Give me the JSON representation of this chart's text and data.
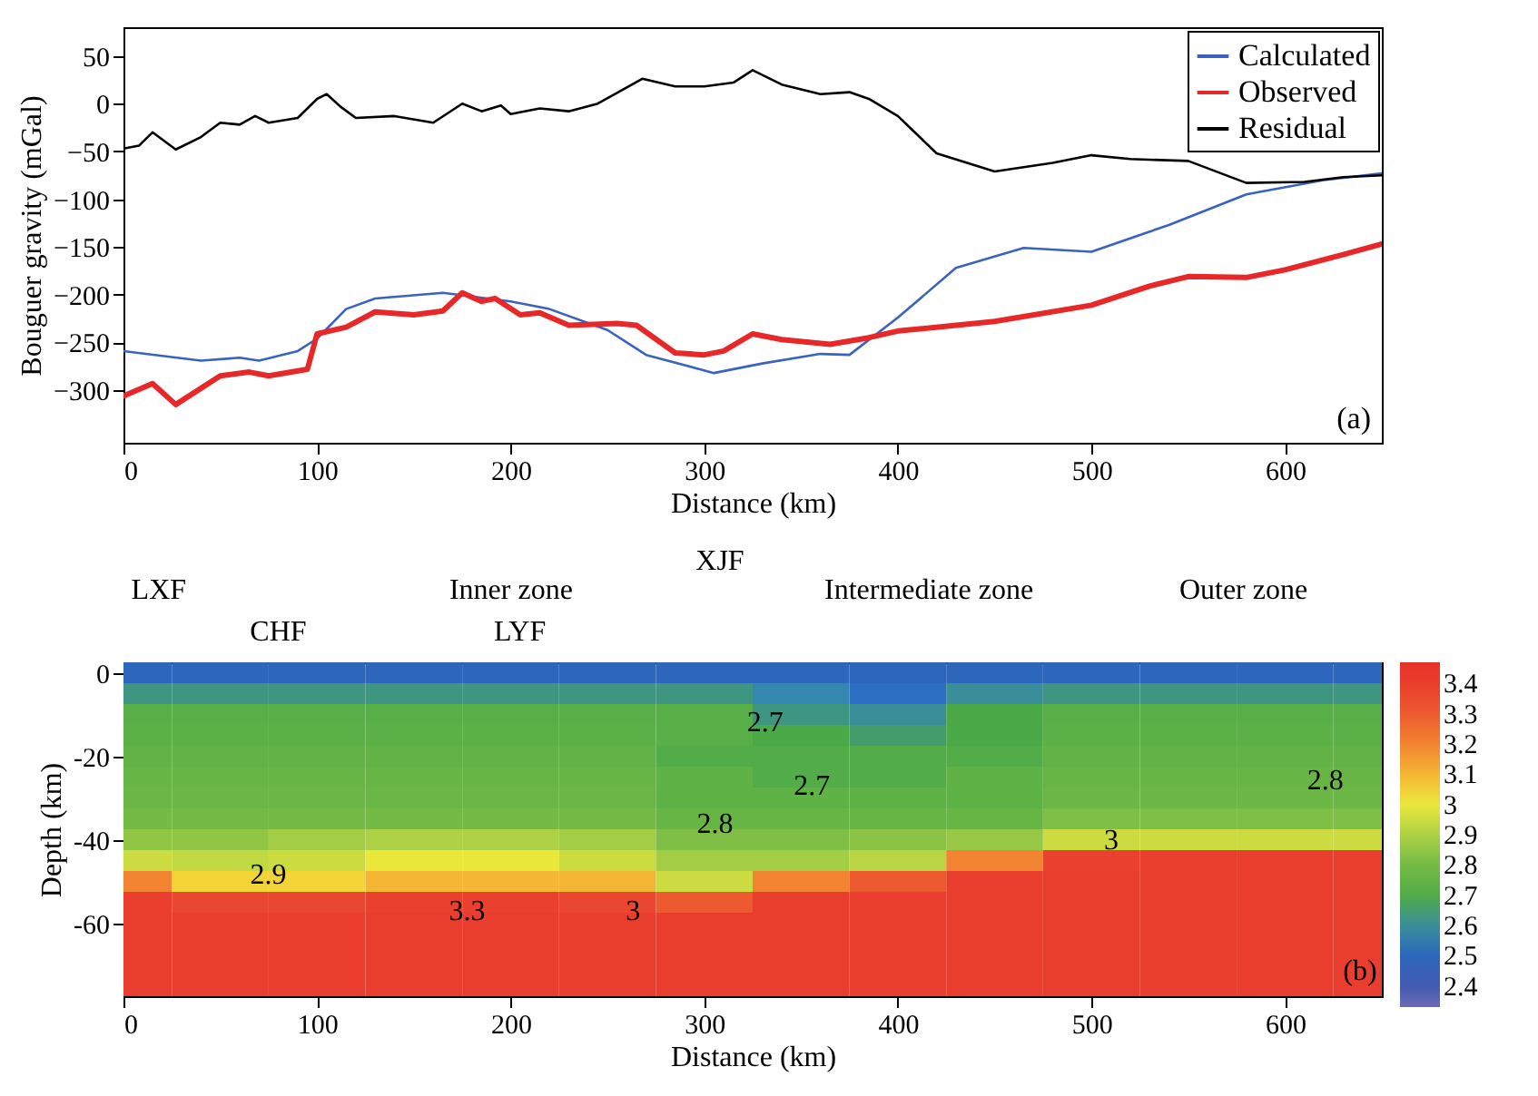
{
  "chart_data": [
    {
      "type": "line",
      "xlabel": "Distance (km)",
      "ylabel": "Bouguer gravity (mGal)",
      "xlim": [
        0,
        650
      ],
      "xticks": [
        0,
        100,
        200,
        300,
        400,
        500,
        600
      ],
      "ylim": [
        -355,
        80
      ],
      "yticks": [
        50,
        0,
        -50,
        -100,
        -150,
        -200,
        -250,
        -300
      ],
      "grid": false,
      "legend": "top right",
      "annotations": [
        "(a)"
      ],
      "series": [
        {
          "name": "Calculated",
          "color": "#3a62c0",
          "x": [
            0,
            40,
            60,
            70,
            90,
            100,
            115,
            130,
            165,
            200,
            220,
            250,
            270,
            305,
            330,
            360,
            375,
            400,
            430,
            465,
            500,
            540,
            580,
            620,
            650
          ],
          "values": [
            -259,
            -269,
            -266,
            -269,
            -259,
            -246,
            -215,
            -204,
            -198,
            -207,
            -215,
            -237,
            -263,
            -282,
            -272,
            -262,
            -263,
            -224,
            -172,
            -151,
            -155,
            -127,
            -95,
            -80,
            -73
          ]
        },
        {
          "name": "Observed",
          "color": "#e82828",
          "x": [
            0,
            15,
            27,
            50,
            65,
            75,
            95,
            100,
            115,
            130,
            150,
            165,
            175,
            185,
            192,
            205,
            215,
            230,
            255,
            265,
            285,
            300,
            310,
            325,
            340,
            365,
            385,
            400,
            450,
            500,
            530,
            550,
            580,
            600,
            630,
            650
          ],
          "values": [
            -306,
            -293,
            -315,
            -285,
            -281,
            -285,
            -278,
            -241,
            -234,
            -218,
            -221,
            -217,
            -198,
            -207,
            -204,
            -221,
            -219,
            -232,
            -230,
            -232,
            -261,
            -263,
            -259,
            -241,
            -247,
            -252,
            -245,
            -238,
            -228,
            -211,
            -191,
            -181,
            -182,
            -174,
            -158,
            -147
          ]
        },
        {
          "name": "Residual",
          "color": "#000000",
          "x": [
            0,
            8,
            15,
            27,
            40,
            50,
            60,
            68,
            75,
            90,
            100,
            105,
            112,
            120,
            140,
            160,
            175,
            185,
            195,
            200,
            215,
            230,
            245,
            268,
            285,
            300,
            315,
            325,
            340,
            360,
            375,
            385,
            400,
            420,
            450,
            480,
            500,
            520,
            550,
            580,
            610,
            630,
            650
          ],
          "values": [
            -47,
            -44,
            -30,
            -48,
            -35,
            -20,
            -22,
            -13,
            -20,
            -15,
            5,
            10,
            -3,
            -15,
            -13,
            -20,
            0,
            -8,
            -2,
            -11,
            -5,
            -8,
            0,
            26,
            18,
            18,
            22,
            35,
            20,
            10,
            12,
            5,
            -13,
            -52,
            -71,
            -62,
            -54,
            -58,
            -60,
            -83,
            -82,
            -77,
            -75
          ]
        }
      ]
    },
    {
      "type": "heatmap",
      "xlabel": "Distance (km)",
      "ylabel": "Depth (km)",
      "clim": [
        2.33,
        3.47
      ],
      "cticks": [
        2.4,
        2.5,
        2.6,
        2.7,
        2.8,
        2.9,
        3,
        3.1,
        3.2,
        3.3,
        3.4
      ],
      "categories": [
        "0",
        null,
        "100",
        null,
        "200",
        null,
        "300",
        null,
        "400",
        null,
        "500",
        null,
        "600",
        null
      ],
      "y_categories": [
        "0",
        null,
        null,
        null,
        "-20",
        null,
        null,
        null,
        "-40",
        null,
        null,
        null,
        "-60",
        null,
        null,
        null
      ],
      "cells": [
        [
          2.5,
          2.5,
          2.5,
          2.5,
          2.5,
          2.5,
          2.5,
          2.5,
          2.5,
          2.5,
          2.5,
          2.5,
          2.5,
          2.5
        ],
        [
          2.62,
          2.62,
          2.62,
          2.62,
          2.62,
          2.62,
          2.62,
          2.58,
          2.52,
          2.6,
          2.62,
          2.62,
          2.62,
          2.62
        ],
        [
          2.72,
          2.72,
          2.72,
          2.72,
          2.72,
          2.72,
          2.72,
          2.62,
          2.6,
          2.68,
          2.72,
          2.72,
          2.72,
          2.72
        ],
        [
          2.73,
          2.73,
          2.73,
          2.73,
          2.73,
          2.73,
          2.72,
          2.68,
          2.64,
          2.68,
          2.73,
          2.73,
          2.73,
          2.73
        ],
        [
          2.75,
          2.75,
          2.75,
          2.75,
          2.75,
          2.75,
          2.7,
          2.7,
          2.7,
          2.7,
          2.75,
          2.75,
          2.75,
          2.75
        ],
        [
          2.77,
          2.77,
          2.77,
          2.77,
          2.77,
          2.77,
          2.74,
          2.7,
          2.7,
          2.74,
          2.77,
          2.77,
          2.77,
          2.77
        ],
        [
          2.78,
          2.78,
          2.78,
          2.78,
          2.78,
          2.78,
          2.74,
          2.74,
          2.74,
          2.74,
          2.78,
          2.78,
          2.78,
          2.78
        ],
        [
          2.8,
          2.8,
          2.8,
          2.8,
          2.8,
          2.8,
          2.77,
          2.77,
          2.77,
          2.77,
          2.82,
          2.82,
          2.82,
          2.82
        ],
        [
          2.85,
          2.85,
          2.88,
          2.9,
          2.9,
          2.88,
          2.82,
          2.82,
          2.84,
          2.86,
          2.95,
          2.95,
          2.95,
          2.95
        ],
        [
          2.95,
          2.93,
          2.95,
          3,
          3,
          2.95,
          2.88,
          2.88,
          2.92,
          3.2,
          3.38,
          3.4,
          3.4,
          3.4
        ],
        [
          3.2,
          3.05,
          3.05,
          3.1,
          3.1,
          3.1,
          2.95,
          3.2,
          3.3,
          3.4,
          3.4,
          3.4,
          3.4,
          3.4
        ],
        [
          3.4,
          3.35,
          3.35,
          3.38,
          3.38,
          3.35,
          3.3,
          3.4,
          3.4,
          3.4,
          3.4,
          3.4,
          3.4,
          3.4
        ],
        [
          3.4,
          3.4,
          3.4,
          3.4,
          3.4,
          3.4,
          3.4,
          3.4,
          3.4,
          3.4,
          3.4,
          3.4,
          3.4,
          3.4
        ],
        [
          3.4,
          3.4,
          3.4,
          3.4,
          3.4,
          3.4,
          3.4,
          3.4,
          3.4,
          3.4,
          3.4,
          3.4,
          3.4,
          3.4
        ],
        [
          3.4,
          3.4,
          3.4,
          3.4,
          3.4,
          3.4,
          3.4,
          3.4,
          3.4,
          3.4,
          3.4,
          3.4,
          3.4,
          3.4
        ],
        [
          3.4,
          3.4,
          3.4,
          3.4,
          3.4,
          3.4,
          3.4,
          3.4,
          3.4,
          3.4,
          3.4,
          3.4,
          3.4,
          3.4
        ]
      ],
      "annotations": [
        "(b)",
        "LXF",
        "CHF",
        "Inner zone",
        "LYF",
        "XJF",
        "Intermediate zone",
        "Outer zone",
        "2.7",
        "2.7",
        "2.8",
        "2.8",
        "2.9",
        "3.3",
        "3",
        "3"
      ]
    }
  ]
}
